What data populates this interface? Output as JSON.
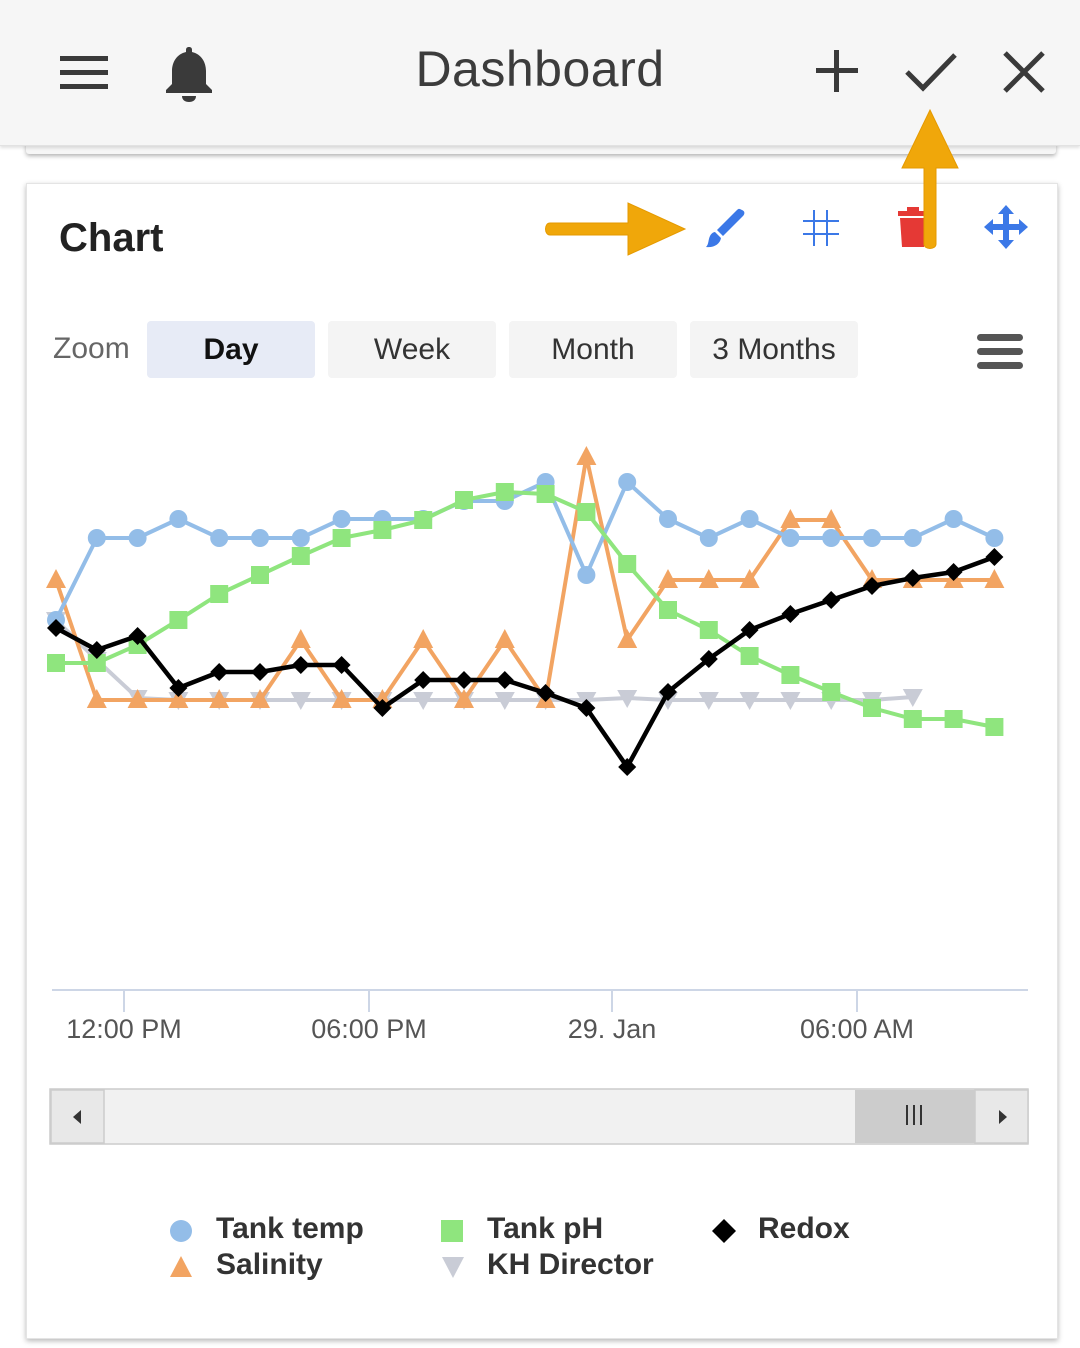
{
  "appbar": {
    "title": "Dashboard",
    "icons": [
      "menu-icon",
      "bell-icon",
      "plus-icon",
      "check-icon",
      "close-icon"
    ]
  },
  "card": {
    "title": "Chart",
    "tools": [
      "paintbrush-icon",
      "grid-icon",
      "trash-icon",
      "move-icon"
    ],
    "colors": {
      "tools": "#3b78e7",
      "trash": "#e53935",
      "annotation": "#f0a70a"
    }
  },
  "zoom": {
    "label": "Zoom",
    "options": [
      "Day",
      "Week",
      "Month",
      "3 Months"
    ],
    "selected": "Day"
  },
  "chart_data": {
    "type": "line",
    "x_ticks": [
      "12:00 PM",
      "06:00 PM",
      "29. Jan",
      "06:00 AM"
    ],
    "grid": false,
    "legend_position": "bottom",
    "series": [
      {
        "name": "Tank temp",
        "color": "#93bde8",
        "marker": "circle",
        "points": [
          [
            0,
            620
          ],
          [
            1,
            538
          ],
          [
            2,
            538
          ],
          [
            3,
            519
          ],
          [
            4,
            538
          ],
          [
            5,
            538
          ],
          [
            6,
            538
          ],
          [
            7,
            519
          ],
          [
            8,
            519
          ],
          [
            9,
            519
          ],
          [
            10,
            501
          ],
          [
            11,
            501
          ],
          [
            12,
            482
          ],
          [
            13,
            575
          ],
          [
            14,
            482
          ],
          [
            15,
            519
          ],
          [
            16,
            538
          ],
          [
            17,
            519
          ],
          [
            18,
            538
          ],
          [
            19,
            538
          ],
          [
            20,
            538
          ],
          [
            21,
            538
          ],
          [
            22,
            519
          ],
          [
            23,
            538
          ]
        ]
      },
      {
        "name": "Tank pH",
        "color": "#8fe57e",
        "marker": "square",
        "points": [
          [
            0,
            663
          ],
          [
            1,
            663
          ],
          [
            2,
            645
          ],
          [
            3,
            620
          ],
          [
            4,
            594
          ],
          [
            5,
            575
          ],
          [
            6,
            556
          ],
          [
            7,
            538
          ],
          [
            8,
            530
          ],
          [
            9,
            520
          ],
          [
            10,
            500
          ],
          [
            11,
            492
          ],
          [
            12,
            494
          ],
          [
            13,
            512
          ],
          [
            14,
            564
          ],
          [
            15,
            610
          ],
          [
            16,
            630
          ],
          [
            17,
            656
          ],
          [
            18,
            675
          ],
          [
            19,
            692
          ],
          [
            20,
            708
          ],
          [
            21,
            719
          ],
          [
            22,
            719
          ],
          [
            23,
            727
          ]
        ]
      },
      {
        "name": "Salinity",
        "color": "#f2a462",
        "marker": "triangle",
        "points": [
          [
            0,
            580
          ],
          [
            1,
            700
          ],
          [
            2,
            700
          ],
          [
            3,
            700
          ],
          [
            4,
            700
          ],
          [
            5,
            700
          ],
          [
            6,
            640
          ],
          [
            7,
            700
          ],
          [
            8,
            700
          ],
          [
            9,
            640
          ],
          [
            10,
            700
          ],
          [
            11,
            640
          ],
          [
            12,
            700
          ],
          [
            13,
            457
          ],
          [
            14,
            640
          ],
          [
            15,
            580
          ],
          [
            16,
            580
          ],
          [
            17,
            580
          ],
          [
            18,
            520
          ],
          [
            19,
            520
          ],
          [
            20,
            580
          ],
          [
            21,
            580
          ],
          [
            22,
            580
          ],
          [
            23,
            580
          ]
        ]
      },
      {
        "name": "KH Director",
        "color": "#c9ccd6",
        "marker": "triangle-down",
        "points": [
          [
            0,
            620
          ],
          [
            1,
            660
          ],
          [
            2,
            698
          ],
          [
            3,
            700
          ],
          [
            4,
            700
          ],
          [
            5,
            700
          ],
          [
            6,
            700
          ],
          [
            7,
            700
          ],
          [
            8,
            700
          ],
          [
            9,
            700
          ],
          [
            10,
            700
          ],
          [
            11,
            700
          ],
          [
            12,
            700
          ],
          [
            13,
            700
          ],
          [
            14,
            698
          ],
          [
            15,
            700
          ],
          [
            16,
            700
          ],
          [
            17,
            700
          ],
          [
            18,
            700
          ],
          [
            19,
            700
          ],
          [
            20,
            700
          ],
          [
            21,
            697
          ]
        ]
      },
      {
        "name": "Redox",
        "color": "#000000",
        "marker": "diamond",
        "points": [
          [
            0,
            628
          ],
          [
            1,
            650
          ],
          [
            2,
            636
          ],
          [
            3,
            688
          ],
          [
            4,
            672
          ],
          [
            5,
            672
          ],
          [
            6,
            665
          ],
          [
            7,
            665
          ],
          [
            8,
            708
          ],
          [
            9,
            680
          ],
          [
            10,
            680
          ],
          [
            11,
            680
          ],
          [
            12,
            693
          ],
          [
            13,
            708
          ],
          [
            14,
            767
          ],
          [
            15,
            692
          ],
          [
            16,
            659
          ],
          [
            17,
            630
          ],
          [
            18,
            614
          ],
          [
            19,
            600
          ],
          [
            20,
            586
          ],
          [
            21,
            578
          ],
          [
            22,
            572
          ],
          [
            23,
            557
          ]
        ]
      }
    ]
  },
  "legend": {
    "items": [
      {
        "label": "Tank temp",
        "marker": "circle",
        "color": "#93bde8"
      },
      {
        "label": "Tank pH",
        "marker": "square",
        "color": "#8fe57e"
      },
      {
        "label": "Redox",
        "marker": "diamond",
        "color": "#000000"
      },
      {
        "label": "Salinity",
        "marker": "triangle",
        "color": "#f2a462"
      },
      {
        "label": "KH Director",
        "marker": "triangle-down",
        "color": "#c9ccd6"
      }
    ]
  },
  "navigator": {
    "icons": [
      "scroll-left-icon",
      "scroll-handle-icon",
      "scroll-right-icon"
    ]
  }
}
